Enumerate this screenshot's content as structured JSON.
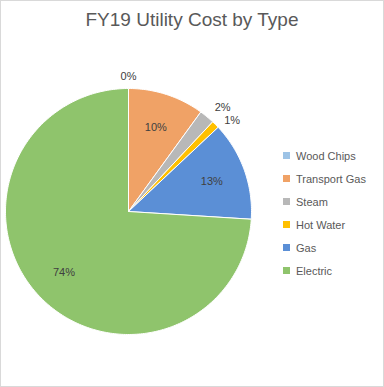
{
  "chart_data": {
    "type": "pie",
    "title": "FY19 Utility Cost by Type",
    "categories": [
      "Wood Chips",
      "Transport Gas",
      "Steam",
      "Hot Water",
      "Gas",
      "Electric"
    ],
    "values": [
      0,
      10,
      2,
      1,
      13,
      74
    ],
    "value_labels": [
      "0%",
      "10%",
      "2%",
      "1%",
      "13%",
      "74%"
    ],
    "colors": [
      "#9dc3e6",
      "#f0a266",
      "#b8b8b8",
      "#ffc000",
      "#5b8fd6",
      "#8fc46c"
    ],
    "data_labels": true,
    "legend": "right"
  }
}
